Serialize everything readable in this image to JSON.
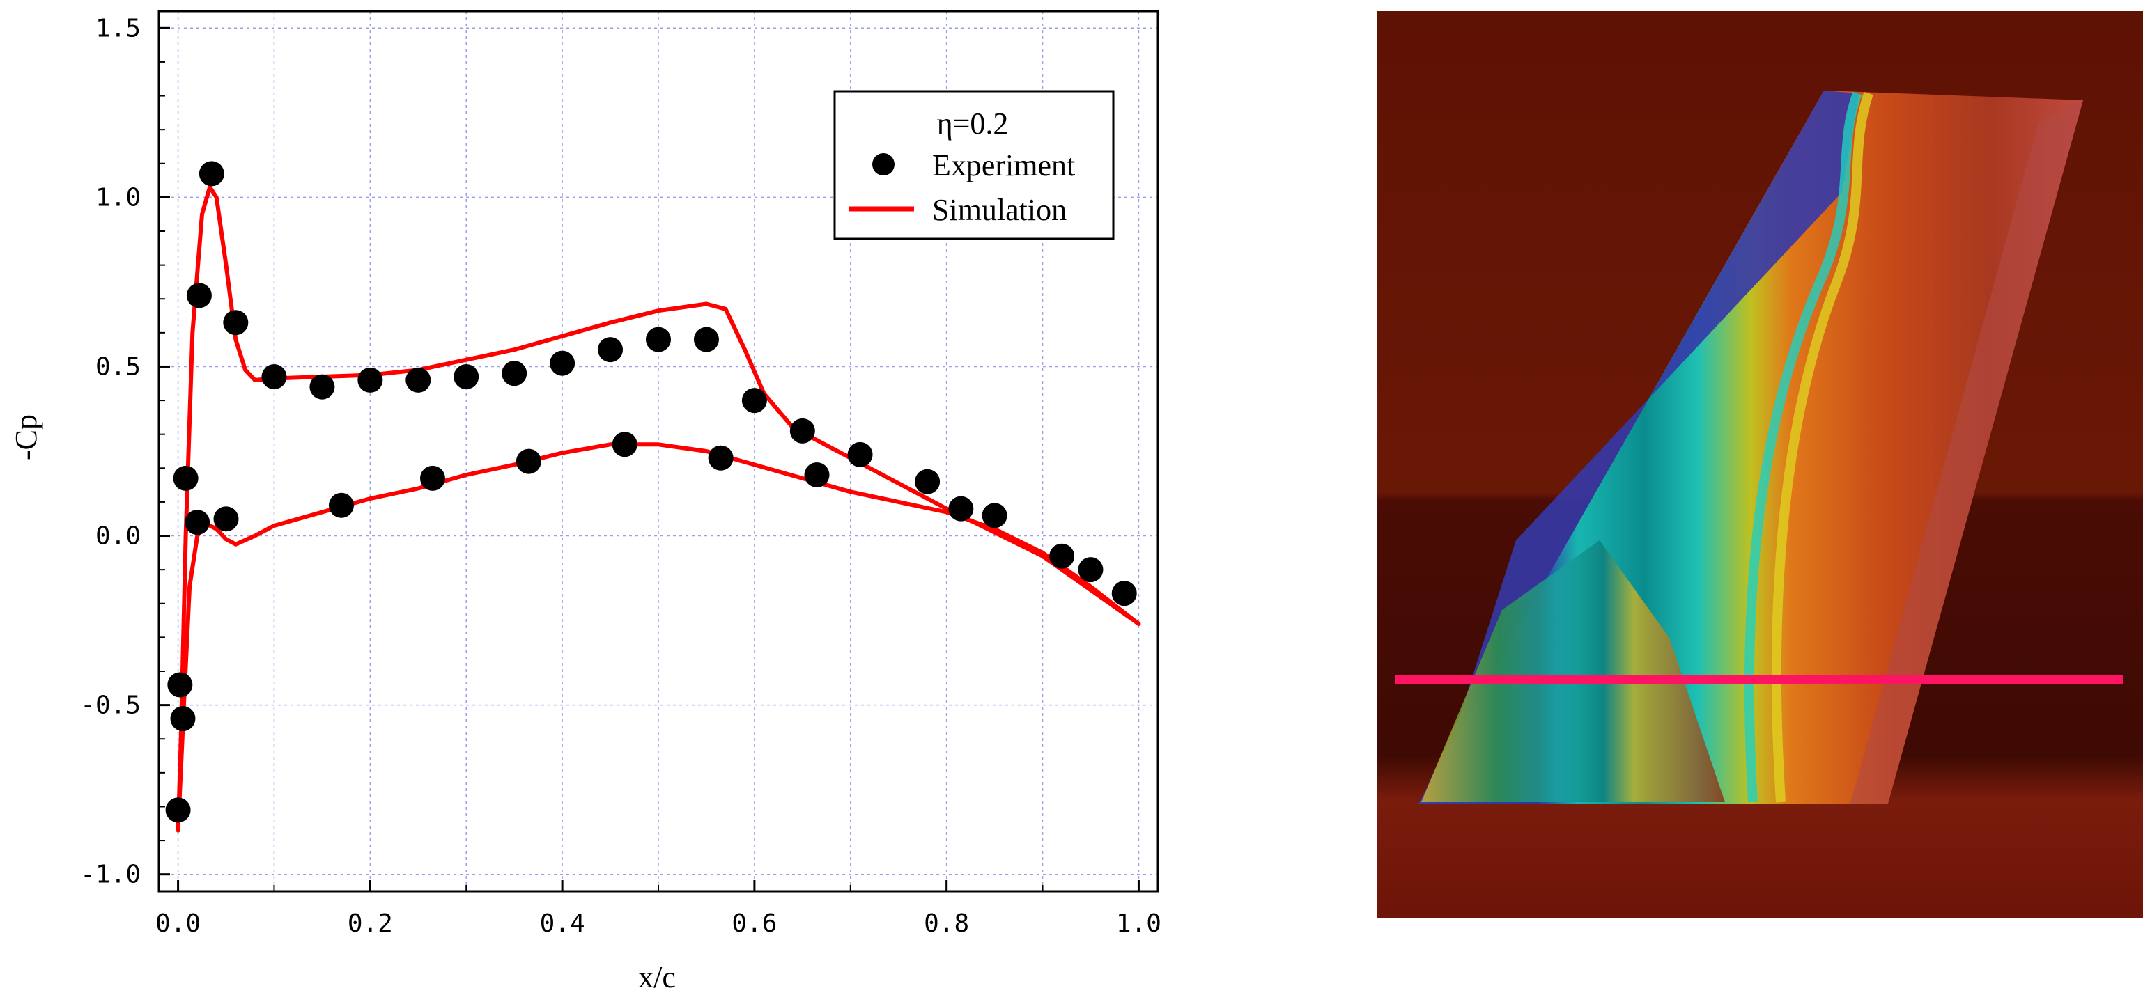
{
  "chart_data": {
    "type": "scatter",
    "xlabel": "x/c",
    "ylabel": "-Cp",
    "xlim": [
      -0.02,
      1.02
    ],
    "ylim": [
      -1.05,
      1.55
    ],
    "x_ticks": [
      "0.0",
      "0.2",
      "0.4",
      "0.6",
      "0.8",
      "1.0"
    ],
    "y_ticks": [
      "1.5",
      "1.0",
      "0.5",
      "0.0",
      "-0.5",
      "-1.0"
    ],
    "grid": true,
    "legend": {
      "title": "η=0.2",
      "placement": "top-right",
      "entries": [
        "Experiment",
        "Simulation"
      ]
    },
    "series": [
      {
        "name": "Experiment",
        "kind": "markers",
        "color": "#000000",
        "points": [
          [
            0.0,
            -0.81
          ],
          [
            0.002,
            -0.44
          ],
          [
            0.005,
            -0.54
          ],
          [
            0.008,
            0.17
          ],
          [
            0.02,
            0.04
          ],
          [
            0.022,
            0.71
          ],
          [
            0.035,
            1.07
          ],
          [
            0.05,
            0.05
          ],
          [
            0.06,
            0.63
          ],
          [
            0.1,
            0.47
          ],
          [
            0.15,
            0.44
          ],
          [
            0.17,
            0.09
          ],
          [
            0.2,
            0.46
          ],
          [
            0.25,
            0.46
          ],
          [
            0.265,
            0.17
          ],
          [
            0.3,
            0.47
          ],
          [
            0.35,
            0.48
          ],
          [
            0.365,
            0.22
          ],
          [
            0.4,
            0.51
          ],
          [
            0.45,
            0.55
          ],
          [
            0.465,
            0.27
          ],
          [
            0.5,
            0.58
          ],
          [
            0.55,
            0.58
          ],
          [
            0.565,
            0.23
          ],
          [
            0.6,
            0.4
          ],
          [
            0.65,
            0.31
          ],
          [
            0.665,
            0.18
          ],
          [
            0.71,
            0.24
          ],
          [
            0.78,
            0.16
          ],
          [
            0.815,
            0.08
          ],
          [
            0.85,
            0.06
          ],
          [
            0.92,
            -0.06
          ],
          [
            0.95,
            -0.1
          ],
          [
            0.985,
            -0.17
          ]
        ]
      },
      {
        "name": "Simulation",
        "kind": "line",
        "color": "#ff0000",
        "upper": [
          [
            0.0,
            -0.87
          ],
          [
            0.003,
            -0.6
          ],
          [
            0.008,
            0.0
          ],
          [
            0.015,
            0.6
          ],
          [
            0.025,
            0.95
          ],
          [
            0.033,
            1.03
          ],
          [
            0.04,
            1.0
          ],
          [
            0.05,
            0.8
          ],
          [
            0.06,
            0.58
          ],
          [
            0.07,
            0.49
          ],
          [
            0.08,
            0.46
          ],
          [
            0.1,
            0.465
          ],
          [
            0.15,
            0.47
          ],
          [
            0.2,
            0.475
          ],
          [
            0.25,
            0.49
          ],
          [
            0.3,
            0.52
          ],
          [
            0.35,
            0.55
          ],
          [
            0.4,
            0.59
          ],
          [
            0.45,
            0.63
          ],
          [
            0.5,
            0.665
          ],
          [
            0.55,
            0.685
          ],
          [
            0.57,
            0.67
          ],
          [
            0.59,
            0.55
          ],
          [
            0.61,
            0.42
          ],
          [
            0.64,
            0.32
          ],
          [
            0.7,
            0.23
          ],
          [
            0.8,
            0.08
          ],
          [
            0.9,
            -0.06
          ],
          [
            1.0,
            -0.26
          ]
        ],
        "lower": [
          [
            0.0,
            -0.87
          ],
          [
            0.006,
            -0.5
          ],
          [
            0.012,
            -0.15
          ],
          [
            0.02,
            0.0
          ],
          [
            0.03,
            0.035
          ],
          [
            0.04,
            0.02
          ],
          [
            0.05,
            -0.01
          ],
          [
            0.06,
            -0.025
          ],
          [
            0.08,
            0.0
          ],
          [
            0.1,
            0.03
          ],
          [
            0.15,
            0.07
          ],
          [
            0.2,
            0.11
          ],
          [
            0.25,
            0.14
          ],
          [
            0.3,
            0.18
          ],
          [
            0.35,
            0.21
          ],
          [
            0.4,
            0.245
          ],
          [
            0.45,
            0.27
          ],
          [
            0.5,
            0.27
          ],
          [
            0.55,
            0.25
          ],
          [
            0.6,
            0.21
          ],
          [
            0.65,
            0.17
          ],
          [
            0.7,
            0.13
          ],
          [
            0.75,
            0.1
          ],
          [
            0.8,
            0.07
          ],
          [
            0.85,
            0.02
          ],
          [
            0.9,
            -0.05
          ],
          [
            0.95,
            -0.15
          ],
          [
            1.0,
            -0.26
          ]
        ]
      }
    ]
  },
  "cfd_image": {
    "section_line_color": "#ff1464",
    "background_color": "#5e1204"
  }
}
